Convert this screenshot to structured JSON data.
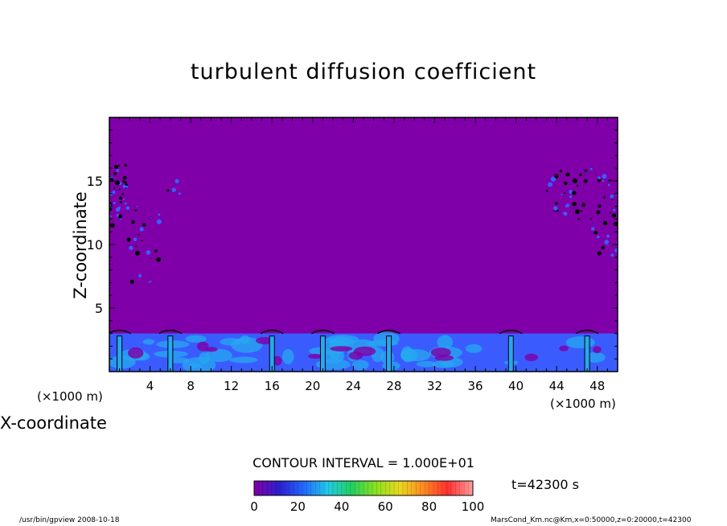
{
  "chart_data": {
    "type": "heatmap",
    "title": "turbulent diffusion coefficient",
    "xlabel": "X-coordinate",
    "ylabel": "Z-coordinate",
    "x_unit_label": "(×1000 m)",
    "xlim": [
      0,
      50
    ],
    "ylim": [
      0,
      20
    ],
    "x_ticks": [
      "4",
      "8",
      "12",
      "16",
      "20",
      "24",
      "28",
      "32",
      "36",
      "40",
      "44",
      "48"
    ],
    "y_ticks": [
      "5",
      "10",
      "15"
    ],
    "background_value": 0,
    "colors": {
      "background": "#7f00a8",
      "low_turbulence": "#3a5cff",
      "mid_turbulence": "#27a8f0",
      "contour": "#000000"
    },
    "contour_interval": "CONTOUR INTERVAL = 1.000E+01",
    "colorbar": {
      "min": 0,
      "max": 100,
      "ticks": [
        "0",
        "20",
        "40",
        "60",
        "80",
        "100"
      ],
      "colors": [
        "#7f00a8",
        "#2b1fd0",
        "#2266ff",
        "#22c8e8",
        "#22d060",
        "#88e020",
        "#e8d820",
        "#ff8820",
        "#ff3030",
        "#ff9898"
      ]
    },
    "time": "t=42300 s",
    "footer_left": "/usr/bin/gpview   2008-10-18",
    "footer_right": "MarsCond_Km.nc@Km,x=0:50000,z=0:20000,t=42300"
  }
}
